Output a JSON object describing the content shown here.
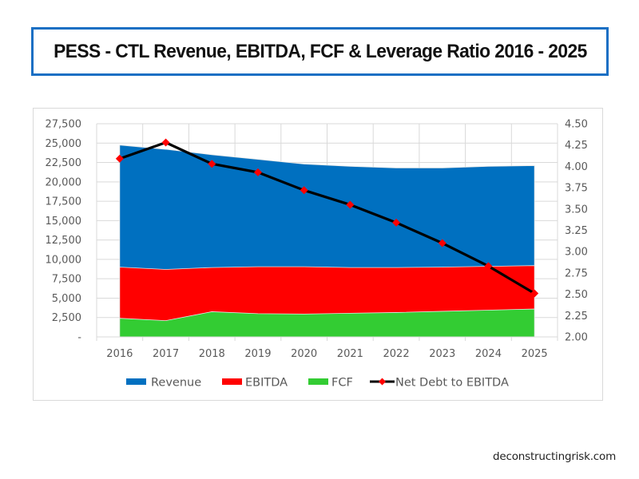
{
  "header": {
    "title": "PESS - CTL Revenue, EBITDA, FCF & Leverage Ratio 2016 - 2025"
  },
  "watermark": "deconstructingrisk.com",
  "chart_data": {
    "type": "area",
    "title": "PESS - CTL Revenue, EBITDA, FCF & Leverage Ratio 2016 - 2025",
    "categories": [
      "2016",
      "2017",
      "2018",
      "2019",
      "2020",
      "2021",
      "2022",
      "2023",
      "2024",
      "2025"
    ],
    "series": [
      {
        "name": "Revenue",
        "type": "area",
        "axis": "left",
        "color": "#0070c0",
        "values": [
          24750,
          24200,
          23500,
          22900,
          22300,
          22000,
          21800,
          21800,
          22000,
          22100
        ]
      },
      {
        "name": "EBITDA",
        "type": "area",
        "axis": "left",
        "color": "#ff0000",
        "values": [
          9000,
          8700,
          8950,
          9050,
          9050,
          8950,
          8950,
          9000,
          9100,
          9200
        ]
      },
      {
        "name": "FCF",
        "type": "area",
        "axis": "left",
        "color": "#33cc33",
        "values": [
          2400,
          2100,
          3250,
          3000,
          2950,
          3050,
          3150,
          3300,
          3450,
          3600
        ]
      },
      {
        "name": "Net Debt to EBITDA",
        "type": "line",
        "axis": "right",
        "color": "#000000",
        "marker_color": "#ff0000",
        "values": [
          4.09,
          4.28,
          4.03,
          3.93,
          3.72,
          3.55,
          3.34,
          3.1,
          2.83,
          2.51
        ]
      }
    ],
    "left_axis": {
      "ylim": [
        0,
        27500
      ],
      "ticks": [
        0,
        2500,
        5000,
        7500,
        10000,
        12500,
        15000,
        17500,
        20000,
        22500,
        25000,
        27500
      ],
      "tick_labels": [
        "-",
        "2,500",
        "5,000",
        "7,500",
        "10,000",
        "12,500",
        "15,000",
        "17,500",
        "20,000",
        "22,500",
        "25,000",
        "27,500"
      ]
    },
    "right_axis": {
      "ylim": [
        2.0,
        4.5
      ],
      "ticks": [
        2.0,
        2.25,
        2.5,
        2.75,
        3.0,
        3.25,
        3.5,
        3.75,
        4.0,
        4.25,
        4.5
      ],
      "tick_labels": [
        "2.00",
        "2.25",
        "2.50",
        "2.75",
        "3.00",
        "3.25",
        "3.50",
        "3.75",
        "4.00",
        "4.25",
        "4.50"
      ]
    },
    "xlabel": "",
    "ylabel": "",
    "grid": true,
    "legend_position": "bottom",
    "legend": [
      "Revenue",
      "EBITDA",
      "FCF",
      "Net Debt to EBITDA"
    ]
  }
}
